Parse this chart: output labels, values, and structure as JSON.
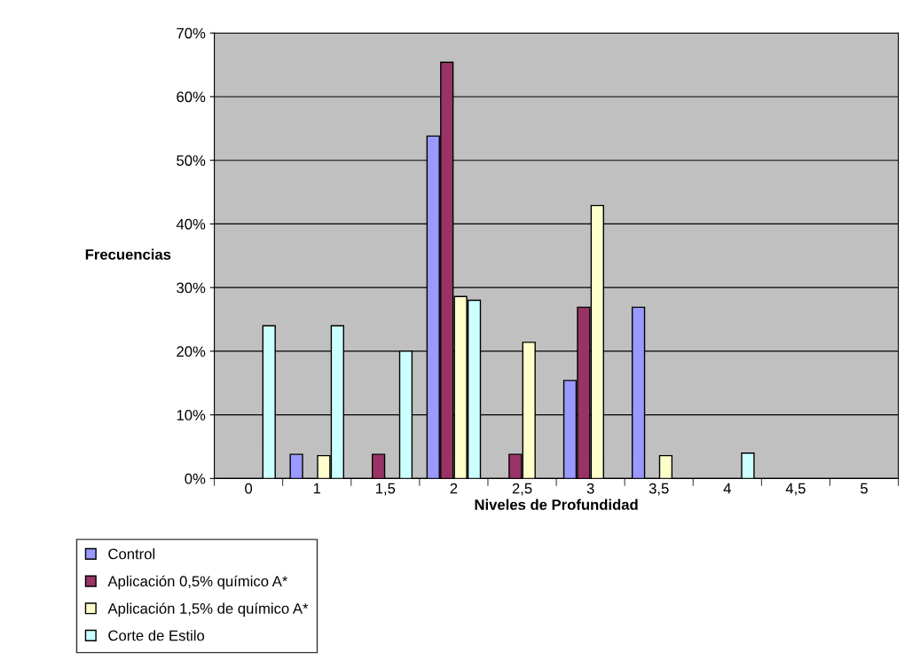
{
  "chart_data": {
    "type": "bar",
    "xlabel": "Niveles de Profundidad",
    "ylabel": "Frecuencias",
    "categories": [
      "0",
      "1",
      "1,5",
      "2",
      "2,5",
      "3",
      "3,5",
      "4",
      "4,5",
      "5"
    ],
    "series": [
      {
        "name": "Control",
        "color": "#9999ff",
        "values": [
          null,
          3.8,
          null,
          53.8,
          null,
          15.4,
          26.9,
          null,
          null,
          null
        ]
      },
      {
        "name": "Aplicación 0,5% químico A*",
        "color": "#993366",
        "values": [
          null,
          null,
          3.8,
          65.4,
          3.8,
          26.9,
          null,
          null,
          null,
          null
        ]
      },
      {
        "name": "Aplicación 1,5% de químico A*",
        "color": "#ffffcc",
        "values": [
          null,
          3.6,
          null,
          28.6,
          21.4,
          42.9,
          3.6,
          null,
          null,
          null
        ]
      },
      {
        "name": "Corte de Estilo",
        "color": "#ccffff",
        "values": [
          24,
          24,
          20,
          28,
          null,
          null,
          null,
          4,
          null,
          null
        ]
      }
    ],
    "ylim": [
      0,
      70
    ],
    "yticks": [
      {
        "value": 0,
        "label": "0%"
      },
      {
        "value": 10,
        "label": "10%"
      },
      {
        "value": 20,
        "label": "20%"
      },
      {
        "value": 30,
        "label": "30%"
      },
      {
        "value": 40,
        "label": "40%"
      },
      {
        "value": 50,
        "label": "50%"
      },
      {
        "value": 60,
        "label": "60%"
      },
      {
        "value": 70,
        "label": "70%"
      }
    ],
    "grid": "y",
    "legend": "bottom left"
  }
}
